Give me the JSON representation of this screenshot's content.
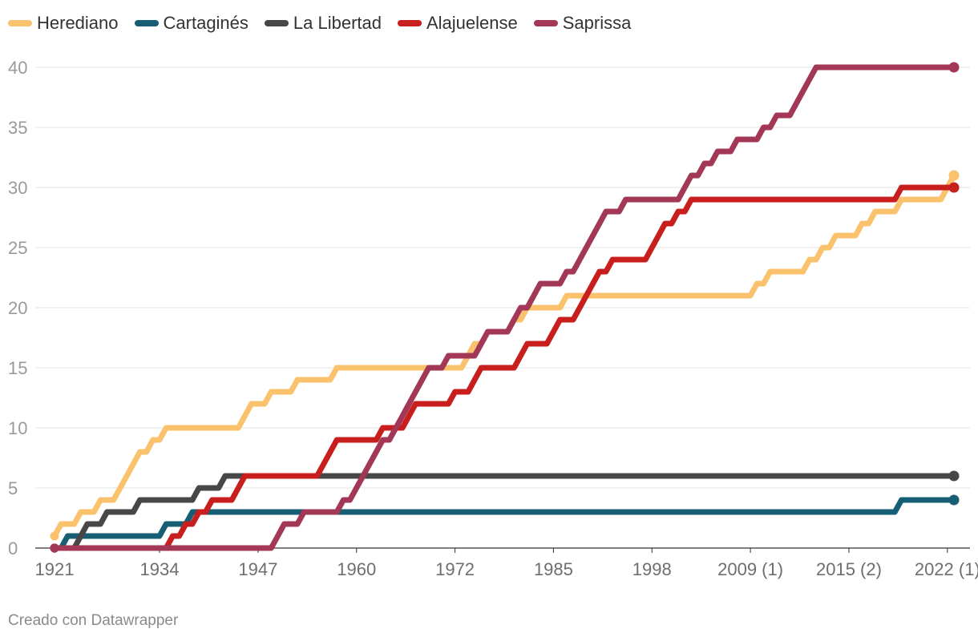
{
  "chart_data": {
    "type": "line",
    "title": "",
    "xlabel": "",
    "ylabel": "",
    "x_tick_labels": [
      "1921",
      "1934",
      "1947",
      "1960",
      "1972",
      "1985",
      "1998",
      "2009 (1)",
      "2015 (2)",
      "2022 (1)"
    ],
    "y_ticks": [
      0,
      5,
      10,
      15,
      20,
      25,
      30,
      35,
      40
    ],
    "ylim": [
      0,
      40
    ],
    "grid": "horizontal",
    "legend_position": "top-left",
    "series": [
      {
        "name": "Herediano",
        "color": "#fbc26d",
        "points": [
          [
            0,
            1
          ],
          [
            1,
            2
          ],
          [
            3,
            2
          ],
          [
            4,
            3
          ],
          [
            6,
            3
          ],
          [
            7,
            4
          ],
          [
            9,
            4
          ],
          [
            10,
            5
          ],
          [
            11,
            6
          ],
          [
            12,
            7
          ],
          [
            13,
            8
          ],
          [
            14,
            8
          ],
          [
            15,
            9
          ],
          [
            16,
            9
          ],
          [
            17,
            10
          ],
          [
            28,
            10
          ],
          [
            29,
            11
          ],
          [
            30,
            12
          ],
          [
            32,
            12
          ],
          [
            33,
            13
          ],
          [
            36,
            13
          ],
          [
            37,
            14
          ],
          [
            42,
            14
          ],
          [
            43,
            15
          ],
          [
            62,
            15
          ],
          [
            63,
            16
          ],
          [
            64,
            17
          ],
          [
            65,
            17
          ],
          [
            66,
            18
          ],
          [
            69,
            18
          ],
          [
            70,
            19
          ],
          [
            71,
            19
          ],
          [
            72,
            20
          ],
          [
            77,
            20
          ],
          [
            78,
            21
          ],
          [
            106,
            21
          ],
          [
            107,
            22
          ],
          [
            108,
            22
          ],
          [
            109,
            23
          ],
          [
            114,
            23
          ],
          [
            115,
            24
          ],
          [
            116,
            24
          ],
          [
            117,
            25
          ],
          [
            118,
            25
          ],
          [
            119,
            26
          ],
          [
            122,
            26
          ],
          [
            123,
            27
          ],
          [
            124,
            27
          ],
          [
            125,
            28
          ],
          [
            128,
            28
          ],
          [
            129,
            29
          ],
          [
            135,
            29
          ],
          [
            136,
            30
          ],
          [
            137,
            31
          ]
        ]
      },
      {
        "name": "Cartaginés",
        "color": "#165e74",
        "points": [
          [
            0,
            0
          ],
          [
            1,
            0
          ],
          [
            2,
            1
          ],
          [
            16,
            1
          ],
          [
            17,
            2
          ],
          [
            20,
            2
          ],
          [
            21,
            3
          ],
          [
            128,
            3
          ],
          [
            129,
            4
          ],
          [
            137,
            4
          ]
        ]
      },
      {
        "name": "La Libertad",
        "color": "#474747",
        "points": [
          [
            0,
            0
          ],
          [
            3,
            0
          ],
          [
            4,
            1
          ],
          [
            5,
            2
          ],
          [
            7,
            2
          ],
          [
            8,
            3
          ],
          [
            12,
            3
          ],
          [
            13,
            4
          ],
          [
            21,
            4
          ],
          [
            22,
            5
          ],
          [
            25,
            5
          ],
          [
            26,
            6
          ],
          [
            137,
            6
          ]
        ]
      },
      {
        "name": "Alajuelense",
        "color": "#c81e1e",
        "points": [
          [
            0,
            0
          ],
          [
            6,
            0
          ],
          [
            7,
            0
          ],
          [
            17,
            0
          ],
          [
            18,
            1
          ],
          [
            19,
            1
          ],
          [
            20,
            2
          ],
          [
            21,
            2
          ],
          [
            22,
            3
          ],
          [
            23,
            3
          ],
          [
            24,
            4
          ],
          [
            27,
            4
          ],
          [
            28,
            5
          ],
          [
            29,
            6
          ],
          [
            40,
            6
          ],
          [
            41,
            7
          ],
          [
            42,
            8
          ],
          [
            43,
            9
          ],
          [
            49,
            9
          ],
          [
            50,
            10
          ],
          [
            53,
            10
          ],
          [
            54,
            11
          ],
          [
            55,
            12
          ],
          [
            60,
            12
          ],
          [
            61,
            13
          ],
          [
            63,
            13
          ],
          [
            64,
            14
          ],
          [
            65,
            15
          ],
          [
            70,
            15
          ],
          [
            71,
            16
          ],
          [
            72,
            17
          ],
          [
            75,
            17
          ],
          [
            76,
            18
          ],
          [
            77,
            19
          ],
          [
            79,
            19
          ],
          [
            80,
            20
          ],
          [
            81,
            21
          ],
          [
            82,
            22
          ],
          [
            83,
            23
          ],
          [
            84,
            23
          ],
          [
            85,
            24
          ],
          [
            90,
            24
          ],
          [
            91,
            25
          ],
          [
            92,
            26
          ],
          [
            93,
            27
          ],
          [
            94,
            27
          ],
          [
            95,
            28
          ],
          [
            96,
            28
          ],
          [
            97,
            29
          ],
          [
            128,
            29
          ],
          [
            129,
            30
          ],
          [
            137,
            30
          ]
        ]
      },
      {
        "name": "Saprissa",
        "color": "#a23756",
        "points": [
          [
            0,
            0
          ],
          [
            33,
            0
          ],
          [
            34,
            1
          ],
          [
            35,
            2
          ],
          [
            37,
            2
          ],
          [
            38,
            3
          ],
          [
            43,
            3
          ],
          [
            44,
            4
          ],
          [
            45,
            4
          ],
          [
            46,
            5
          ],
          [
            47,
            6
          ],
          [
            48,
            7
          ],
          [
            49,
            8
          ],
          [
            50,
            9
          ],
          [
            51,
            9
          ],
          [
            52,
            10
          ],
          [
            53,
            11
          ],
          [
            54,
            12
          ],
          [
            55,
            13
          ],
          [
            56,
            14
          ],
          [
            57,
            15
          ],
          [
            59,
            15
          ],
          [
            60,
            16
          ],
          [
            64,
            16
          ],
          [
            65,
            17
          ],
          [
            66,
            18
          ],
          [
            69,
            18
          ],
          [
            70,
            19
          ],
          [
            71,
            20
          ],
          [
            72,
            20
          ],
          [
            73,
            21
          ],
          [
            74,
            22
          ],
          [
            77,
            22
          ],
          [
            78,
            23
          ],
          [
            79,
            23
          ],
          [
            80,
            24
          ],
          [
            81,
            25
          ],
          [
            82,
            26
          ],
          [
            83,
            27
          ],
          [
            84,
            28
          ],
          [
            86,
            28
          ],
          [
            87,
            29
          ],
          [
            95,
            29
          ],
          [
            96,
            30
          ],
          [
            97,
            31
          ],
          [
            98,
            31
          ],
          [
            99,
            32
          ],
          [
            100,
            32
          ],
          [
            101,
            33
          ],
          [
            103,
            33
          ],
          [
            104,
            34
          ],
          [
            107,
            34
          ],
          [
            108,
            35
          ],
          [
            109,
            35
          ],
          [
            110,
            36
          ],
          [
            112,
            36
          ],
          [
            113,
            37
          ],
          [
            114,
            38
          ],
          [
            115,
            39
          ],
          [
            116,
            40
          ],
          [
            137,
            40
          ]
        ]
      }
    ]
  },
  "footer": "Creado con Datawrapper"
}
